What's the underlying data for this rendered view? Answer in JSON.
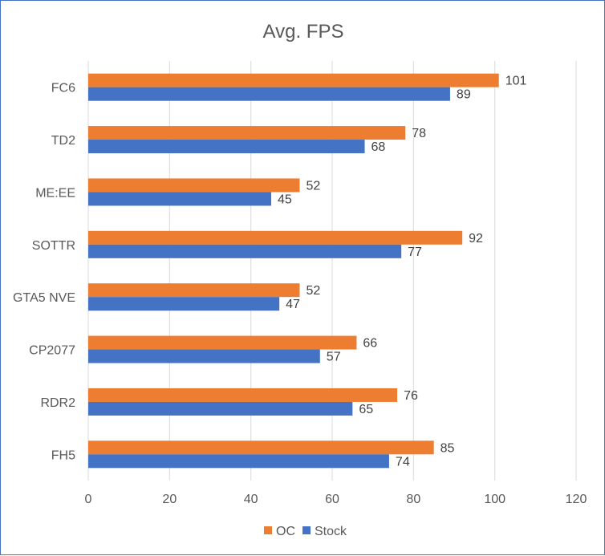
{
  "chart_data": {
    "type": "bar",
    "orientation": "horizontal",
    "title": "Avg. FPS",
    "categories": [
      "FC6",
      "TD2",
      "ME:EE",
      "SOTTR",
      "GTA5 NVE",
      "CP2077",
      "RDR2",
      "FH5"
    ],
    "series": [
      {
        "name": "OC",
        "color": "#ed7d31",
        "values": [
          101,
          78,
          52,
          92,
          52,
          66,
          76,
          85
        ]
      },
      {
        "name": "Stock",
        "color": "#4472c4",
        "values": [
          89,
          68,
          45,
          77,
          47,
          57,
          65,
          74
        ]
      }
    ],
    "xlim": [
      0,
      120
    ],
    "xticks": [
      "0",
      "20",
      "40",
      "60",
      "80",
      "100",
      "120"
    ],
    "grid": true,
    "legend": "bottom",
    "data_labels": true
  }
}
